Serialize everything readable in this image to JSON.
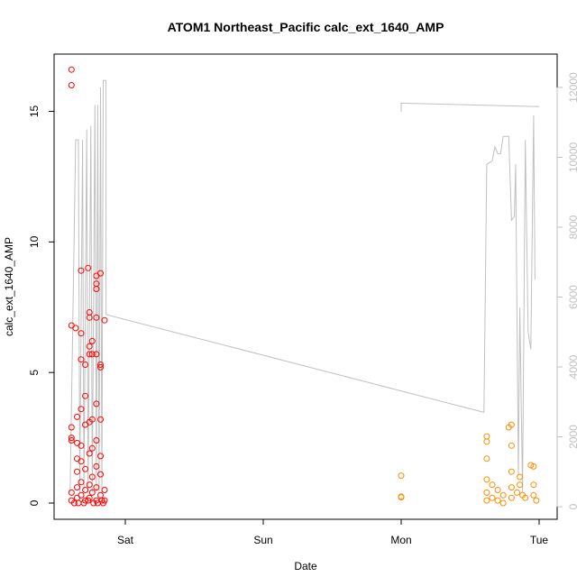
{
  "chart_data": {
    "type": "scatter",
    "title": "ATOM1 Northeast_Pacific calc_ext_1640_AMP",
    "xlabel": "Date",
    "ylabel": "calc_ext_1640_AMP",
    "x_ticks": [
      "Sat",
      "Sun",
      "Mon",
      "Tue"
    ],
    "y_ticks": [
      "0",
      "5",
      "10",
      "15"
    ],
    "y_right_ticks": [
      "0",
      "2000",
      "4000",
      "6000",
      "8000",
      "10000",
      "12000"
    ],
    "ylim": [
      0,
      16.6
    ],
    "y_right_lim": [
      0,
      12200
    ],
    "colors": {
      "series1": "#ff0000",
      "series2": "#ff8c00",
      "line": "#c0c0c0",
      "axis": "#000000",
      "right_axis": "#c0c0c0"
    },
    "series": [
      {
        "color_key": "series1",
        "points": [
          [
            -0.39,
            16.6
          ],
          [
            -0.39,
            16.0
          ],
          [
            -0.39,
            6.8
          ],
          [
            -0.39,
            2.9
          ],
          [
            -0.39,
            2.5
          ],
          [
            -0.39,
            2.4
          ],
          [
            -0.39,
            0.4
          ],
          [
            -0.39,
            0.1
          ],
          [
            -0.36,
            6.7
          ],
          [
            -0.35,
            3.3
          ],
          [
            -0.35,
            2.3
          ],
          [
            -0.35,
            1.7
          ],
          [
            -0.35,
            1.2
          ],
          [
            -0.35,
            0.6
          ],
          [
            -0.35,
            0.2
          ],
          [
            -0.32,
            8.9
          ],
          [
            -0.32,
            6.5
          ],
          [
            -0.32,
            5.5
          ],
          [
            -0.32,
            3.6
          ],
          [
            -0.32,
            2.2
          ],
          [
            -0.32,
            1.6
          ],
          [
            -0.32,
            0.8
          ],
          [
            -0.32,
            0.3
          ],
          [
            -0.29,
            5.3
          ],
          [
            -0.29,
            4.1
          ],
          [
            -0.29,
            3.0
          ],
          [
            -0.29,
            1.3
          ],
          [
            -0.29,
            0.5
          ],
          [
            -0.29,
            0.1
          ],
          [
            -0.27,
            9.0
          ],
          [
            -0.26,
            7.3
          ],
          [
            -0.26,
            7.1
          ],
          [
            -0.26,
            6.0
          ],
          [
            -0.26,
            5.7
          ],
          [
            -0.26,
            3.1
          ],
          [
            -0.26,
            1.9
          ],
          [
            -0.26,
            0.7
          ],
          [
            -0.26,
            0.2
          ],
          [
            -0.24,
            6.2
          ],
          [
            -0.24,
            5.7
          ],
          [
            -0.24,
            3.2
          ],
          [
            -0.24,
            2.1
          ],
          [
            -0.24,
            1.0
          ],
          [
            -0.24,
            0.4
          ],
          [
            -0.21,
            8.7
          ],
          [
            -0.21,
            8.4
          ],
          [
            -0.21,
            8.2
          ],
          [
            -0.21,
            7.1
          ],
          [
            -0.21,
            5.7
          ],
          [
            -0.21,
            3.8
          ],
          [
            -0.21,
            2.4
          ],
          [
            -0.21,
            1.4
          ],
          [
            -0.21,
            0.6
          ],
          [
            -0.21,
            0.1
          ],
          [
            -0.18,
            8.8
          ],
          [
            -0.18,
            5.3
          ],
          [
            -0.18,
            5.2
          ],
          [
            -0.18,
            3.2
          ],
          [
            -0.18,
            1.8
          ],
          [
            -0.18,
            1.1
          ],
          [
            -0.18,
            0.3
          ],
          [
            -0.15,
            7.0
          ],
          [
            -0.15,
            0.5
          ],
          [
            -0.15,
            0.1
          ],
          [
            -0.37,
            0.0
          ],
          [
            -0.34,
            0.0
          ],
          [
            -0.3,
            0.0
          ],
          [
            -0.27,
            0.1
          ],
          [
            -0.23,
            0.0
          ],
          [
            -0.2,
            0.0
          ],
          [
            -0.17,
            0.1
          ],
          [
            -0.16,
            0.0
          ]
        ]
      },
      {
        "color_key": "series2",
        "points": [
          [
            2.0,
            1.05
          ],
          [
            2.0,
            0.25
          ],
          [
            2.0,
            0.22
          ],
          [
            2.62,
            2.55
          ],
          [
            2.62,
            2.35
          ],
          [
            2.62,
            1.7
          ],
          [
            2.62,
            0.9
          ],
          [
            2.62,
            0.4
          ],
          [
            2.62,
            0.1
          ],
          [
            2.66,
            0.7
          ],
          [
            2.66,
            0.2
          ],
          [
            2.7,
            0.5
          ],
          [
            2.7,
            0.1
          ],
          [
            2.74,
            0.3
          ],
          [
            2.74,
            0.0
          ],
          [
            2.78,
            2.9
          ],
          [
            2.8,
            3.0
          ],
          [
            2.8,
            2.2
          ],
          [
            2.8,
            1.2
          ],
          [
            2.8,
            0.6
          ],
          [
            2.8,
            0.2
          ],
          [
            2.84,
            0.4
          ],
          [
            2.86,
            0.7
          ],
          [
            2.86,
            1.0
          ],
          [
            2.88,
            0.3
          ],
          [
            2.9,
            0.2
          ],
          [
            2.94,
            1.45
          ],
          [
            2.96,
            1.4
          ],
          [
            2.96,
            0.7
          ],
          [
            2.96,
            0.3
          ],
          [
            2.98,
            0.1
          ]
        ]
      }
    ],
    "line_right_axis": [
      [
        -0.4,
        400
      ],
      [
        -0.36,
        10500
      ],
      [
        -0.34,
        10500
      ],
      [
        -0.33,
        400
      ],
      [
        -0.31,
        10500
      ],
      [
        -0.3,
        400
      ],
      [
        -0.28,
        10800
      ],
      [
        -0.27,
        400
      ],
      [
        -0.25,
        10900
      ],
      [
        -0.24,
        400
      ],
      [
        -0.22,
        11500
      ],
      [
        -0.21,
        400
      ],
      [
        -0.2,
        11500
      ],
      [
        -0.19,
        400
      ],
      [
        -0.18,
        12000
      ],
      [
        -0.17,
        400
      ],
      [
        -0.16,
        12200
      ],
      [
        -0.14,
        12200
      ],
      [
        -0.14,
        5500
      ],
      [
        2.6,
        2700
      ],
      [
        2.62,
        9800
      ],
      [
        2.66,
        9900
      ],
      [
        2.68,
        10300
      ],
      [
        2.7,
        10100
      ],
      [
        2.72,
        10100
      ],
      [
        2.74,
        10600
      ],
      [
        2.78,
        10600
      ],
      [
        2.8,
        8200
      ],
      [
        2.82,
        8300
      ],
      [
        2.83,
        9800
      ],
      [
        2.85,
        900
      ],
      [
        2.86,
        5700
      ],
      [
        2.88,
        400
      ],
      [
        2.9,
        10500
      ],
      [
        2.92,
        5000
      ],
      [
        2.94,
        4500
      ],
      [
        2.96,
        11200
      ],
      [
        2.97,
        6500
      ]
    ],
    "line_right_axis_2": [
      [
        2.0,
        11300
      ],
      [
        2.0,
        11550
      ],
      [
        3.0,
        11450
      ]
    ]
  }
}
